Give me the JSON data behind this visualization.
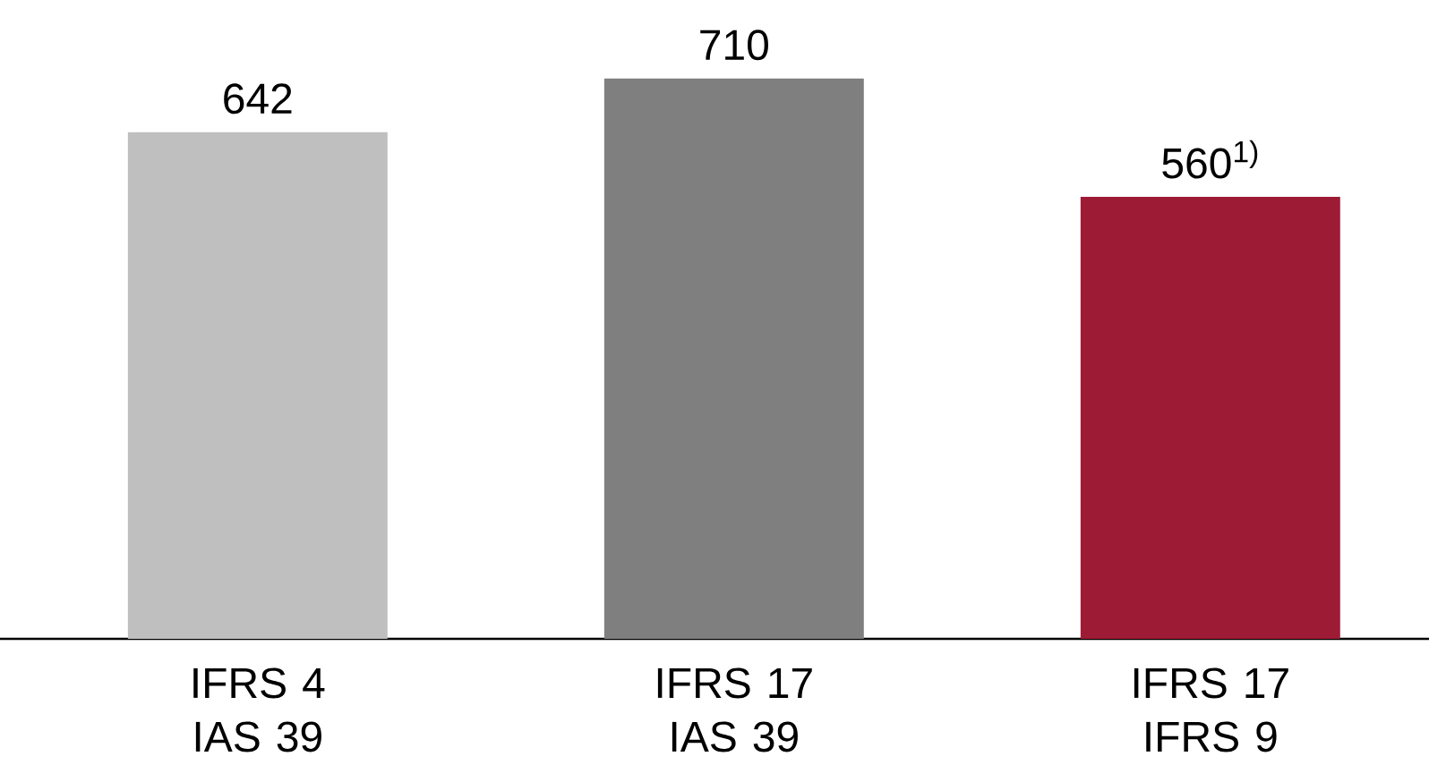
{
  "chart_data": {
    "type": "bar",
    "categories": [
      "IFRS 4 IAS 39",
      "IFRS 17 IAS 39",
      "IFRS 17 IFRS 9"
    ],
    "values": [
      642,
      710,
      560
    ],
    "colors": [
      "#bfbfbf",
      "#7f7f7f",
      "#9e1b36"
    ],
    "value_labels": [
      "642",
      "710",
      "560$^{1)}$"
    ]
  }
}
